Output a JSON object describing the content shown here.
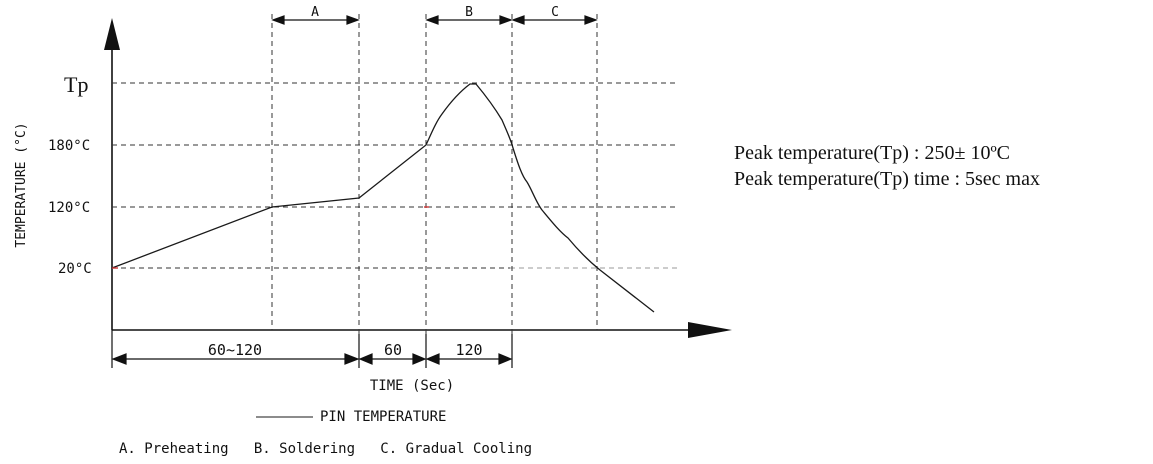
{
  "y_axis": {
    "label": "TEMPERATURE (°C)",
    "ticks": [
      "Tp",
      "180°C",
      "120°C",
      "20°C"
    ]
  },
  "x_axis": {
    "label": "TIME (Sec)",
    "durations": [
      "60~120",
      "60",
      "120"
    ]
  },
  "zones": [
    {
      "letter": "A",
      "name": "Preheating"
    },
    {
      "letter": "B",
      "name": "Soldering"
    },
    {
      "letter": "C",
      "name": "Gradual Cooling"
    }
  ],
  "legend": {
    "line_label": "PIN TEMPERATURE",
    "zone_line": "A. Preheating   B. Soldering   C. Gradual Cooling"
  },
  "notes": {
    "peak_temp": "Peak temperature(Tp) : 250±  10ºC",
    "peak_time": "Peak temperature(Tp) time : 5sec max"
  },
  "colors": {
    "line": "#1a1a1a",
    "grid": "#333333",
    "accent": "#cc3333"
  }
}
